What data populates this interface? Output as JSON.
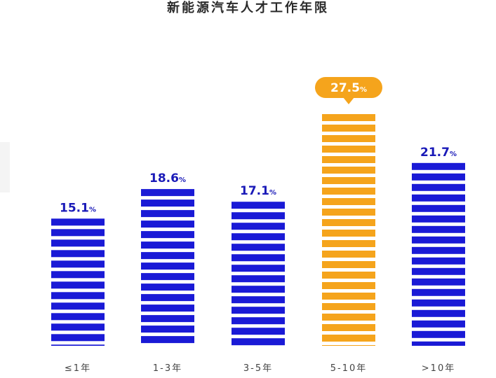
{
  "chart_data": {
    "type": "bar",
    "title": "新能源汽车人才工作年限",
    "categories": [
      "≤1年",
      "1-3年",
      "3-5年",
      "5-10年",
      ">10年"
    ],
    "values": [
      15.1,
      18.6,
      17.1,
      27.5,
      21.7
    ],
    "value_labels": [
      "15.1",
      "18.6",
      "17.1",
      "27.5",
      "21.7"
    ],
    "unit": "%",
    "highlight_index": 3,
    "colors": {
      "default": "#1a1ad6",
      "highlight": "#f5a41c",
      "label": "#1a1ab8",
      "highlight_label": "#ffffff"
    },
    "grid": false,
    "legend": "none"
  }
}
